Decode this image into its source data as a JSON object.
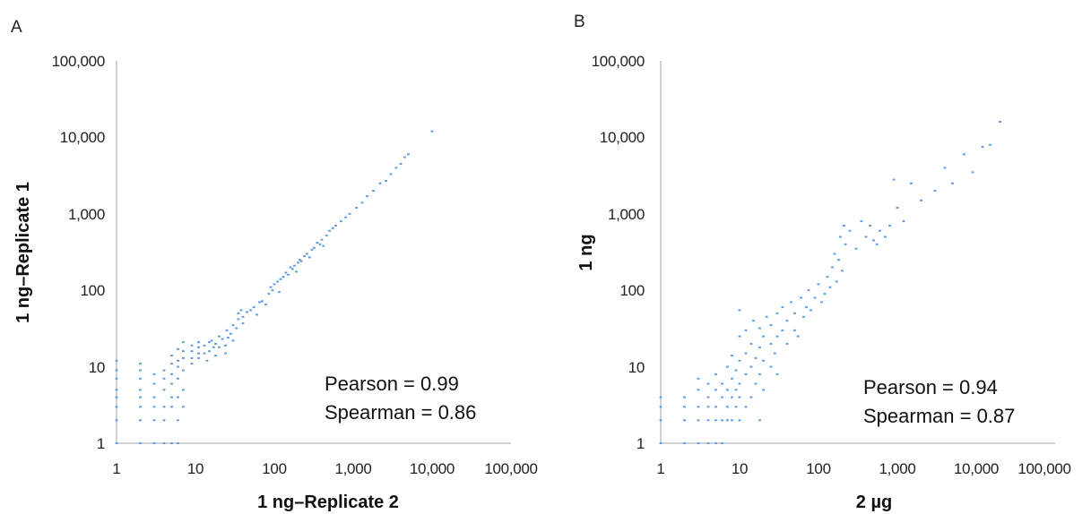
{
  "chart_data": [
    {
      "panel": "A",
      "type": "scatter",
      "x_scale": "log",
      "y_scale": "log",
      "xlabel": "1 ng–Replicate 2",
      "ylabel": "1 ng–Replicate 1",
      "xlim": [
        1,
        100000
      ],
      "ylim": [
        1,
        100000
      ],
      "x_ticks": [
        "1",
        "10",
        "100",
        "1,000",
        "10,000",
        "100,000"
      ],
      "y_ticks": [
        "1",
        "10",
        "100",
        "1,000",
        "10,000",
        "100,000"
      ],
      "grid": false,
      "annotations": [
        "Pearson = 0.99",
        "Spearman = 0.86"
      ],
      "color": "#5b9be0",
      "points": [
        [
          1,
          1
        ],
        [
          1,
          2
        ],
        [
          1,
          3
        ],
        [
          1,
          4
        ],
        [
          1,
          5
        ],
        [
          1,
          7
        ],
        [
          1,
          9
        ],
        [
          1,
          12
        ],
        [
          2,
          1
        ],
        [
          2,
          2
        ],
        [
          2,
          3
        ],
        [
          2,
          4
        ],
        [
          2,
          5
        ],
        [
          2,
          7
        ],
        [
          2,
          9
        ],
        [
          2,
          11
        ],
        [
          3,
          1
        ],
        [
          3,
          2
        ],
        [
          3,
          3
        ],
        [
          3,
          4
        ],
        [
          3,
          6
        ],
        [
          3,
          8
        ],
        [
          4,
          1
        ],
        [
          4,
          2
        ],
        [
          4,
          3
        ],
        [
          4,
          5
        ],
        [
          4,
          7
        ],
        [
          4,
          9
        ],
        [
          5,
          1
        ],
        [
          5,
          3
        ],
        [
          5,
          4
        ],
        [
          5,
          6
        ],
        [
          5,
          8
        ],
        [
          5,
          11
        ],
        [
          5,
          14
        ],
        [
          6,
          1
        ],
        [
          6,
          2
        ],
        [
          6,
          4
        ],
        [
          6,
          7
        ],
        [
          6,
          10
        ],
        [
          6,
          12
        ],
        [
          6,
          17
        ],
        [
          7,
          3
        ],
        [
          7,
          5
        ],
        [
          7,
          9
        ],
        [
          7,
          13
        ],
        [
          7,
          16
        ],
        [
          7,
          21
        ],
        [
          9,
          11
        ],
        [
          9,
          13
        ],
        [
          9,
          16
        ],
        [
          9,
          19
        ],
        [
          11,
          13
        ],
        [
          11,
          15
        ],
        [
          11,
          18
        ],
        [
          11,
          21
        ],
        [
          13,
          15
        ],
        [
          13,
          19
        ],
        [
          14,
          12
        ],
        [
          15,
          16
        ],
        [
          15,
          21
        ],
        [
          16,
          22
        ],
        [
          17,
          18
        ],
        [
          18,
          14
        ],
        [
          18,
          20
        ],
        [
          20,
          18
        ],
        [
          20,
          25
        ],
        [
          22,
          23
        ],
        [
          24,
          15
        ],
        [
          24,
          19
        ],
        [
          25,
          30
        ],
        [
          26,
          24
        ],
        [
          28,
          27
        ],
        [
          30,
          22
        ],
        [
          30,
          35
        ],
        [
          33,
          32
        ],
        [
          35,
          50
        ],
        [
          35,
          42
        ],
        [
          38,
          55
        ],
        [
          40,
          45
        ],
        [
          40,
          37
        ],
        [
          45,
          52
        ],
        [
          50,
          55
        ],
        [
          55,
          60
        ],
        [
          60,
          48
        ],
        [
          65,
          70
        ],
        [
          70,
          72
        ],
        [
          78,
          65
        ],
        [
          85,
          90
        ],
        [
          90,
          110
        ],
        [
          95,
          100
        ],
        [
          100,
          120
        ],
        [
          110,
          130
        ],
        [
          115,
          95
        ],
        [
          120,
          140
        ],
        [
          130,
          150
        ],
        [
          140,
          170
        ],
        [
          150,
          160
        ],
        [
          160,
          200
        ],
        [
          170,
          190
        ],
        [
          180,
          210
        ],
        [
          190,
          175
        ],
        [
          200,
          230
        ],
        [
          210,
          250
        ],
        [
          220,
          240
        ],
        [
          240,
          280
        ],
        [
          260,
          300
        ],
        [
          280,
          270
        ],
        [
          300,
          340
        ],
        [
          320,
          360
        ],
        [
          350,
          420
        ],
        [
          380,
          400
        ],
        [
          400,
          460
        ],
        [
          420,
          380
        ],
        [
          460,
          520
        ],
        [
          500,
          600
        ],
        [
          550,
          650
        ],
        [
          600,
          700
        ],
        [
          700,
          800
        ],
        [
          800,
          900
        ],
        [
          900,
          1000
        ],
        [
          1100,
          1200
        ],
        [
          1300,
          1400
        ],
        [
          1500,
          1700
        ],
        [
          1800,
          2000
        ],
        [
          2200,
          2500
        ],
        [
          2600,
          2700
        ],
        [
          3000,
          3300
        ],
        [
          3500,
          4000
        ],
        [
          4000,
          4500
        ],
        [
          4500,
          5500
        ],
        [
          5000,
          6000
        ],
        [
          10000,
          12000
        ]
      ]
    },
    {
      "panel": "B",
      "type": "scatter",
      "x_scale": "log",
      "y_scale": "log",
      "xlabel": "2 µg",
      "ylabel": "1 ng",
      "xlim": [
        1,
        100000
      ],
      "ylim": [
        1,
        100000
      ],
      "x_ticks": [
        "1",
        "10",
        "100",
        "1,000",
        "10,000",
        "100,000"
      ],
      "y_ticks": [
        "1",
        "10",
        "100",
        "1,000",
        "10,000",
        "100,000"
      ],
      "grid": false,
      "annotations": [
        "Pearson = 0.94",
        "Spearman = 0.87"
      ],
      "color": "#5b9be0",
      "points": [
        [
          1,
          1
        ],
        [
          1,
          2
        ],
        [
          1,
          3
        ],
        [
          1,
          4
        ],
        [
          2,
          1
        ],
        [
          2,
          2
        ],
        [
          2,
          3
        ],
        [
          2,
          4
        ],
        [
          3,
          1
        ],
        [
          3,
          2
        ],
        [
          3,
          3
        ],
        [
          3,
          5
        ],
        [
          3,
          7
        ],
        [
          4,
          1
        ],
        [
          4,
          2
        ],
        [
          4,
          3
        ],
        [
          4,
          4
        ],
        [
          4,
          6
        ],
        [
          5,
          1
        ],
        [
          5,
          2
        ],
        [
          5,
          3
        ],
        [
          5,
          5
        ],
        [
          5,
          8
        ],
        [
          6,
          1
        ],
        [
          6,
          2
        ],
        [
          6,
          4
        ],
        [
          6,
          6
        ],
        [
          7,
          2
        ],
        [
          7,
          3
        ],
        [
          7,
          5
        ],
        [
          7,
          10
        ],
        [
          8,
          2
        ],
        [
          8,
          4
        ],
        [
          8,
          7
        ],
        [
          8,
          14
        ],
        [
          9,
          3
        ],
        [
          9,
          5
        ],
        [
          9,
          9
        ],
        [
          10,
          2
        ],
        [
          10,
          4
        ],
        [
          10,
          6
        ],
        [
          10,
          12
        ],
        [
          10,
          25
        ],
        [
          10,
          55
        ],
        [
          12,
          3
        ],
        [
          12,
          8
        ],
        [
          12,
          15
        ],
        [
          12,
          30
        ],
        [
          14,
          4
        ],
        [
          14,
          10
        ],
        [
          14,
          20
        ],
        [
          15,
          40
        ],
        [
          16,
          6
        ],
        [
          16,
          13
        ],
        [
          18,
          2
        ],
        [
          18,
          8
        ],
        [
          18,
          18
        ],
        [
          18,
          32
        ],
        [
          20,
          5
        ],
        [
          20,
          12
        ],
        [
          20,
          25
        ],
        [
          22,
          45
        ],
        [
          25,
          10
        ],
        [
          25,
          20
        ],
        [
          25,
          35
        ],
        [
          28,
          15
        ],
        [
          30,
          8
        ],
        [
          30,
          25
        ],
        [
          30,
          50
        ],
        [
          35,
          30
        ],
        [
          35,
          60
        ],
        [
          40,
          20
        ],
        [
          40,
          40
        ],
        [
          45,
          70
        ],
        [
          50,
          30
        ],
        [
          50,
          50
        ],
        [
          55,
          25
        ],
        [
          60,
          80
        ],
        [
          65,
          45
        ],
        [
          70,
          60
        ],
        [
          75,
          100
        ],
        [
          80,
          55
        ],
        [
          90,
          80
        ],
        [
          100,
          120
        ],
        [
          110,
          70
        ],
        [
          120,
          90
        ],
        [
          130,
          150
        ],
        [
          140,
          110
        ],
        [
          150,
          200
        ],
        [
          160,
          300
        ],
        [
          170,
          130
        ],
        [
          180,
          250
        ],
        [
          190,
          500
        ],
        [
          200,
          180
        ],
        [
          210,
          700
        ],
        [
          220,
          400
        ],
        [
          250,
          600
        ],
        [
          300,
          350
        ],
        [
          350,
          800
        ],
        [
          400,
          500
        ],
        [
          450,
          700
        ],
        [
          500,
          450
        ],
        [
          550,
          400
        ],
        [
          600,
          600
        ],
        [
          700,
          500
        ],
        [
          800,
          700
        ],
        [
          900,
          2800
        ],
        [
          1000,
          1200
        ],
        [
          1200,
          800
        ],
        [
          1500,
          2500
        ],
        [
          2000,
          1500
        ],
        [
          3000,
          2000
        ],
        [
          4000,
          4000
        ],
        [
          5000,
          2500
        ],
        [
          7000,
          6000
        ],
        [
          9000,
          3500
        ],
        [
          12000,
          7500
        ],
        [
          15000,
          8000
        ],
        [
          20000,
          16000
        ]
      ]
    }
  ]
}
